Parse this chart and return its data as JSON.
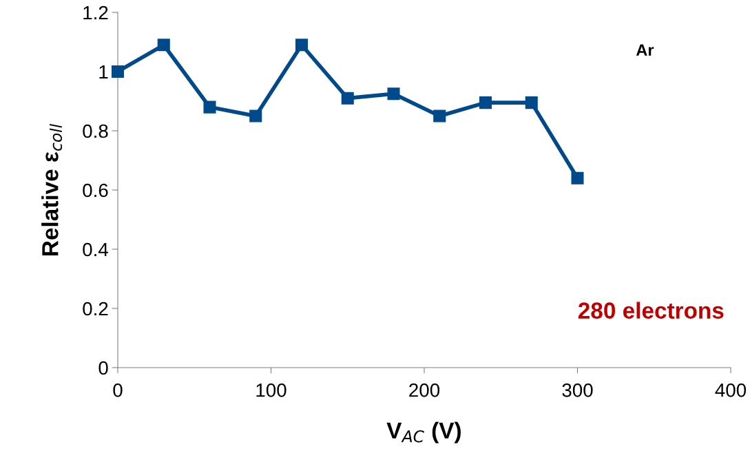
{
  "chart_data": {
    "type": "line",
    "xlabel": "V$_{AC}$ (V)",
    "ylabel": "Relative ε$_{coll}$",
    "x": [
      0,
      30,
      60,
      90,
      120,
      150,
      180,
      210,
      240,
      270,
      300
    ],
    "series": [
      {
        "color": "#004a8c",
        "values": [
          1.0,
          1.09,
          0.88,
          0.85,
          1.09,
          0.91,
          0.925,
          0.85,
          0.895,
          0.895,
          0.64
        ]
      }
    ],
    "xlim": [
      0,
      400
    ],
    "xticks": [
      0,
      100,
      200,
      300,
      400
    ],
    "ylim": [
      0,
      1.2
    ],
    "yticks": [
      0,
      0.2,
      0.4,
      0.6,
      0.8,
      1,
      1.2
    ],
    "marker": "square",
    "line_style": "solid",
    "grid": false,
    "legend": false,
    "annotations": [
      "Ar",
      "280 electrons"
    ]
  }
}
